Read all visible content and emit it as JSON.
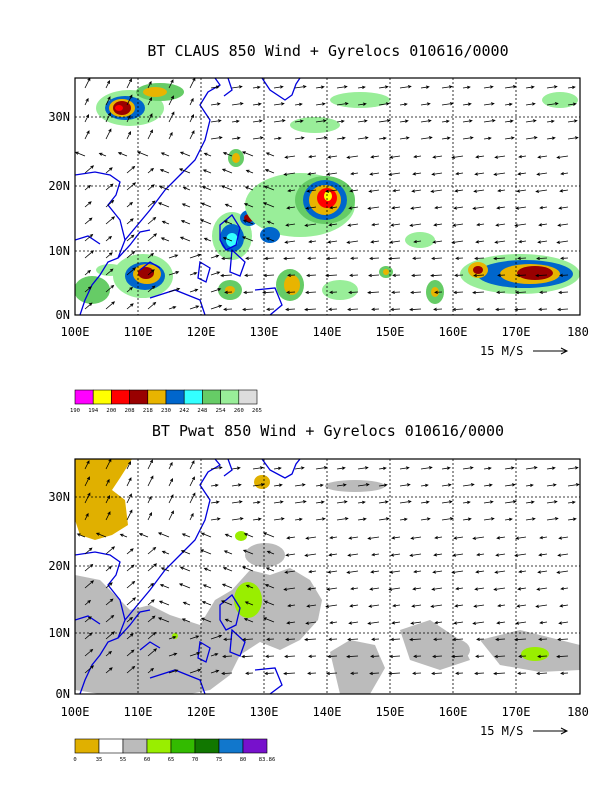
{
  "panels": [
    {
      "title": "BT CLAUS 850 Wind + Gyrelocs 010616/0000",
      "x_ticks": [
        "100E",
        "110E",
        "120E",
        "130E",
        "140E",
        "150E",
        "160E",
        "170E",
        "180"
      ],
      "y_ticks": [
        "0N",
        "10N",
        "20N",
        "30N"
      ],
      "ref_vector_label": "15 M/S",
      "legend": {
        "labels": [
          "190",
          "194",
          "200",
          "208",
          "218",
          "230",
          "242",
          "248",
          "254",
          "260",
          "265"
        ],
        "colors": [
          "#ff00ff",
          "#ffff00",
          "#ff0000",
          "#990000",
          "#e8b400",
          "#0066cc",
          "#33ffff",
          "#66cc66",
          "#99ee99",
          "#dddddd"
        ]
      }
    },
    {
      "title": "BT Pwat 850 Wind + Gyrelocs 010616/0000",
      "x_ticks": [
        "100E",
        "110E",
        "120E",
        "130E",
        "140E",
        "150E",
        "160E",
        "170E",
        "180"
      ],
      "y_ticks": [
        "0N",
        "10N",
        "20N",
        "30N"
      ],
      "ref_vector_label": "15 M/S",
      "legend": {
        "labels": [
          "0",
          "35",
          "55",
          "60",
          "65",
          "70",
          "75",
          "80",
          "83.86"
        ],
        "colors": [
          "#e0b000",
          "#ffffff",
          "#bbbbbb",
          "#99ee00",
          "#33bb00",
          "#117700",
          "#1177cc",
          "#7711cc"
        ]
      }
    }
  ],
  "colors": {
    "coast": "#0000dd",
    "grid": "#000000",
    "arrow": "#000000"
  }
}
